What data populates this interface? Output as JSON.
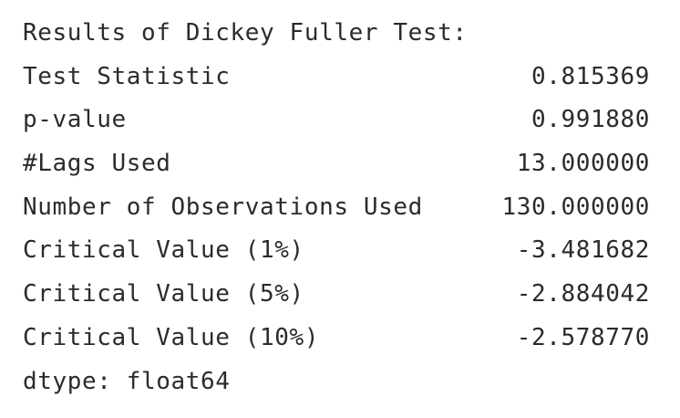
{
  "output": {
    "header": "Results of Dickey Fuller Test:",
    "rows": [
      {
        "label": "Test Statistic",
        "value": "0.815369"
      },
      {
        "label": "p-value",
        "value": "0.991880"
      },
      {
        "label": "#Lags Used",
        "value": "13.000000"
      },
      {
        "label": "Number of Observations Used",
        "value": "130.000000"
      },
      {
        "label": "Critical Value (1%)",
        "value": "-3.481682"
      },
      {
        "label": "Critical Value (5%)",
        "value": "-2.884042"
      },
      {
        "label": "Critical Value (10%)",
        "value": "-2.578770"
      }
    ],
    "footer": "dtype: float64"
  }
}
